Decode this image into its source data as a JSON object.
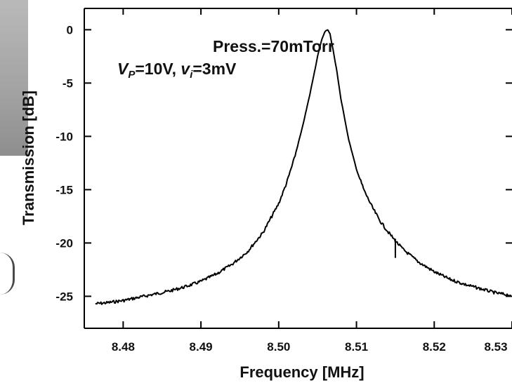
{
  "chart_data": {
    "type": "line",
    "title": "",
    "xlabel": "Frequency [MHz]",
    "ylabel": "Transmission [dB]",
    "xlim": [
      8.475,
      8.53
    ],
    "ylim": [
      -28,
      2
    ],
    "x_ticks": [
      8.48,
      8.49,
      8.5,
      8.51,
      8.52,
      8.53
    ],
    "x_tick_labels": [
      "8.48",
      "8.49",
      "8.50",
      "8.51",
      "8.52",
      "8.53"
    ],
    "y_ticks": [
      0,
      -5,
      -10,
      -15,
      -20,
      -25
    ],
    "y_tick_labels": [
      "0",
      "-5",
      "-10",
      "-15",
      "-20",
      "-25"
    ],
    "annotations": [
      "Press.=70mTorr"
    ],
    "annotation_vp": {
      "sym": "V",
      "sub": "P",
      "rest": "=10V, "
    },
    "annotation_vi": {
      "sym": "v",
      "sub": "i",
      "rest": "=3mV"
    },
    "grid": false,
    "legend": "none",
    "series": [
      {
        "x": [
          8.4765,
          8.478,
          8.48,
          8.482,
          8.484,
          8.486,
          8.488,
          8.49,
          8.492,
          8.494,
          8.496,
          8.498,
          8.5,
          8.501,
          8.502,
          8.503,
          8.504,
          8.5045,
          8.505,
          8.5055,
          8.506,
          8.5063,
          8.5066,
          8.507,
          8.5075,
          8.508,
          8.509,
          8.51,
          8.511,
          8.512,
          8.513,
          8.514,
          8.515,
          8.516,
          8.518,
          8.52,
          8.522,
          8.524,
          8.526,
          8.528,
          8.5298
        ],
        "y": [
          -25.7,
          -25.6,
          -25.4,
          -25.1,
          -24.8,
          -24.5,
          -24.1,
          -23.6,
          -22.9,
          -22.0,
          -20.8,
          -19.0,
          -16.3,
          -14.4,
          -12.1,
          -9.3,
          -6.1,
          -4.3,
          -2.5,
          -1.0,
          -0.1,
          0.0,
          -0.4,
          -1.9,
          -4.0,
          -6.5,
          -10.3,
          -13.1,
          -15.1,
          -16.6,
          -17.9,
          -18.9,
          -19.8,
          -20.6,
          -21.8,
          -22.7,
          -23.4,
          -23.9,
          -24.3,
          -24.7,
          -24.9
        ]
      }
    ]
  }
}
